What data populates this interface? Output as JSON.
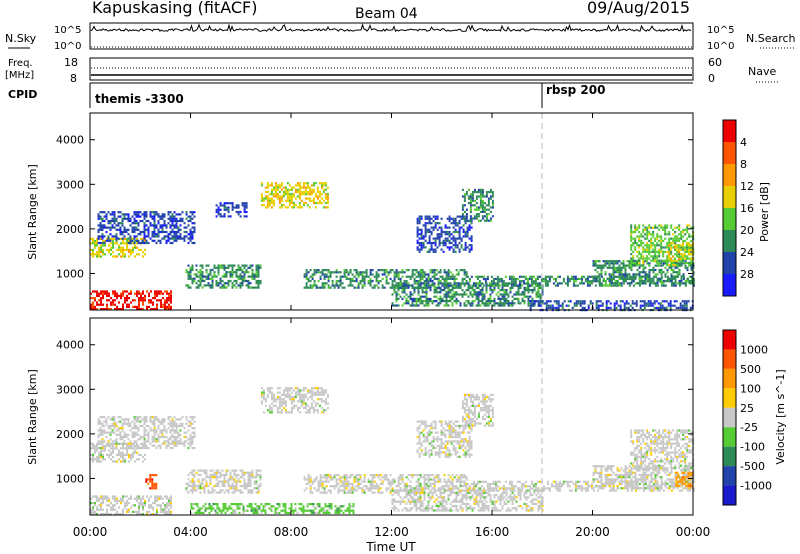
{
  "header": {
    "station": "Kapuskasing (fitACF)",
    "beam": "Beam 04",
    "date": "09/Aug/2015"
  },
  "top_panels": {
    "nsky_label": "N.Sky",
    "nsky_ticks": [
      "10^5",
      "10^0"
    ],
    "nsearch_label": "N.Search",
    "freq_label_1": "Freq.",
    "freq_label_2": "[MHz]",
    "freq_ticks": [
      "18",
      "8"
    ],
    "nave_ticks": [
      "60",
      "0"
    ],
    "nave_label": "Nave",
    "cpid_label": "CPID",
    "cpid_segments": [
      {
        "label": "themis -3300",
        "start_hour": 0
      },
      {
        "label": "rbsp 200",
        "start_hour": 18
      }
    ]
  },
  "axes": {
    "x_ticks": [
      "00:00",
      "04:00",
      "08:00",
      "12:00",
      "16:00",
      "20:00",
      "00:00"
    ],
    "x_label": "Time UT",
    "y_label": "Slant Range [km]",
    "y_ticks": [
      "1000",
      "2000",
      "3000",
      "4000"
    ]
  },
  "colors": {
    "grey": "#c8c8c8",
    "dash_line": "#bbbbbb"
  },
  "chart_data": [
    {
      "type": "heatmap",
      "quantity": "Power",
      "x_range_hours": [
        0,
        24
      ],
      "y_range_km": [
        180,
        4600
      ],
      "colorbar": {
        "title": "Power [dB]",
        "ticks": [
          "4",
          "8",
          "12",
          "16",
          "20",
          "24",
          "28"
        ],
        "colors": [
          "#1a1aff",
          "#2244aa",
          "#2e8b57",
          "#55cc33",
          "#e8d000",
          "#ff9900",
          "#ff5500",
          "#ee0000"
        ]
      },
      "regions": [
        {
          "t0": 0.0,
          "t1": 3.2,
          "r0": 200,
          "r1": 620,
          "level": 7
        },
        {
          "t0": 0.0,
          "t1": 2.2,
          "r0": 1400,
          "r1": 1800,
          "level": 4
        },
        {
          "t0": 0.3,
          "t1": 4.2,
          "r0": 1700,
          "r1": 2400,
          "level": 1
        },
        {
          "t0": 3.8,
          "t1": 6.8,
          "r0": 700,
          "r1": 1200,
          "level": 2
        },
        {
          "t0": 5.0,
          "t1": 6.2,
          "r0": 2300,
          "r1": 2600,
          "level": 1
        },
        {
          "t0": 6.8,
          "t1": 9.5,
          "r0": 2500,
          "r1": 3050,
          "level": 4
        },
        {
          "t0": 8.5,
          "t1": 15.0,
          "r0": 700,
          "r1": 1100,
          "level": 2
        },
        {
          "t0": 12.0,
          "t1": 18.0,
          "r0": 300,
          "r1": 800,
          "level": 2
        },
        {
          "t0": 13.0,
          "t1": 15.2,
          "r0": 1500,
          "r1": 2300,
          "level": 1
        },
        {
          "t0": 14.8,
          "t1": 16.0,
          "r0": 2200,
          "r1": 2900,
          "level": 2
        },
        {
          "t0": 15.0,
          "t1": 24.0,
          "r0": 750,
          "r1": 950,
          "level": 2
        },
        {
          "t0": 17.5,
          "t1": 24.0,
          "r0": 200,
          "r1": 400,
          "level": 1
        },
        {
          "t0": 20.0,
          "t1": 24.0,
          "r0": 800,
          "r1": 1300,
          "level": 2
        },
        {
          "t0": 21.5,
          "t1": 24.0,
          "r0": 1200,
          "r1": 2100,
          "level": 3
        },
        {
          "t0": 23.0,
          "t1": 24.0,
          "r0": 1300,
          "r1": 1700,
          "level": 4
        }
      ]
    },
    {
      "type": "heatmap",
      "quantity": "Velocity",
      "x_range_hours": [
        0,
        24
      ],
      "y_range_km": [
        180,
        4600
      ],
      "colorbar": {
        "title": "Velocity [m s^-1]",
        "ticks": [
          "1000",
          "500",
          "100",
          "25",
          "-25",
          "-100",
          "-500",
          "-1000"
        ],
        "colors": [
          "#1a1acc",
          "#2244aa",
          "#2e8b57",
          "#55cc33",
          "#c8c8c8",
          "#ffcc00",
          "#ff9900",
          "#ff5500",
          "#ee0000"
        ]
      },
      "regions": [
        {
          "t0": 0.0,
          "t1": 3.2,
          "r0": 200,
          "r1": 620,
          "level": 4
        },
        {
          "t0": 0.0,
          "t1": 2.2,
          "r0": 1400,
          "r1": 1800,
          "level": 4
        },
        {
          "t0": 0.3,
          "t1": 4.2,
          "r0": 1700,
          "r1": 2400,
          "level": 4
        },
        {
          "t0": 2.2,
          "t1": 2.6,
          "r0": 800,
          "r1": 1100,
          "level": 7
        },
        {
          "t0": 3.8,
          "t1": 6.8,
          "r0": 700,
          "r1": 1200,
          "level": 4
        },
        {
          "t0": 6.8,
          "t1": 9.5,
          "r0": 2500,
          "r1": 3050,
          "level": 4
        },
        {
          "t0": 4.0,
          "t1": 10.5,
          "r0": 220,
          "r1": 450,
          "level": 3
        },
        {
          "t0": 8.5,
          "t1": 15.0,
          "r0": 700,
          "r1": 1100,
          "level": 4
        },
        {
          "t0": 12.0,
          "t1": 18.0,
          "r0": 300,
          "r1": 800,
          "level": 4
        },
        {
          "t0": 13.0,
          "t1": 15.2,
          "r0": 1500,
          "r1": 2300,
          "level": 4
        },
        {
          "t0": 14.8,
          "t1": 16.0,
          "r0": 2200,
          "r1": 2900,
          "level": 4
        },
        {
          "t0": 15.0,
          "t1": 24.0,
          "r0": 750,
          "r1": 950,
          "level": 4
        },
        {
          "t0": 20.0,
          "t1": 24.0,
          "r0": 800,
          "r1": 1300,
          "level": 4
        },
        {
          "t0": 21.5,
          "t1": 24.0,
          "r0": 1200,
          "r1": 2100,
          "level": 4
        },
        {
          "t0": 23.3,
          "t1": 24.0,
          "r0": 850,
          "r1": 1150,
          "level": 6
        }
      ]
    }
  ]
}
